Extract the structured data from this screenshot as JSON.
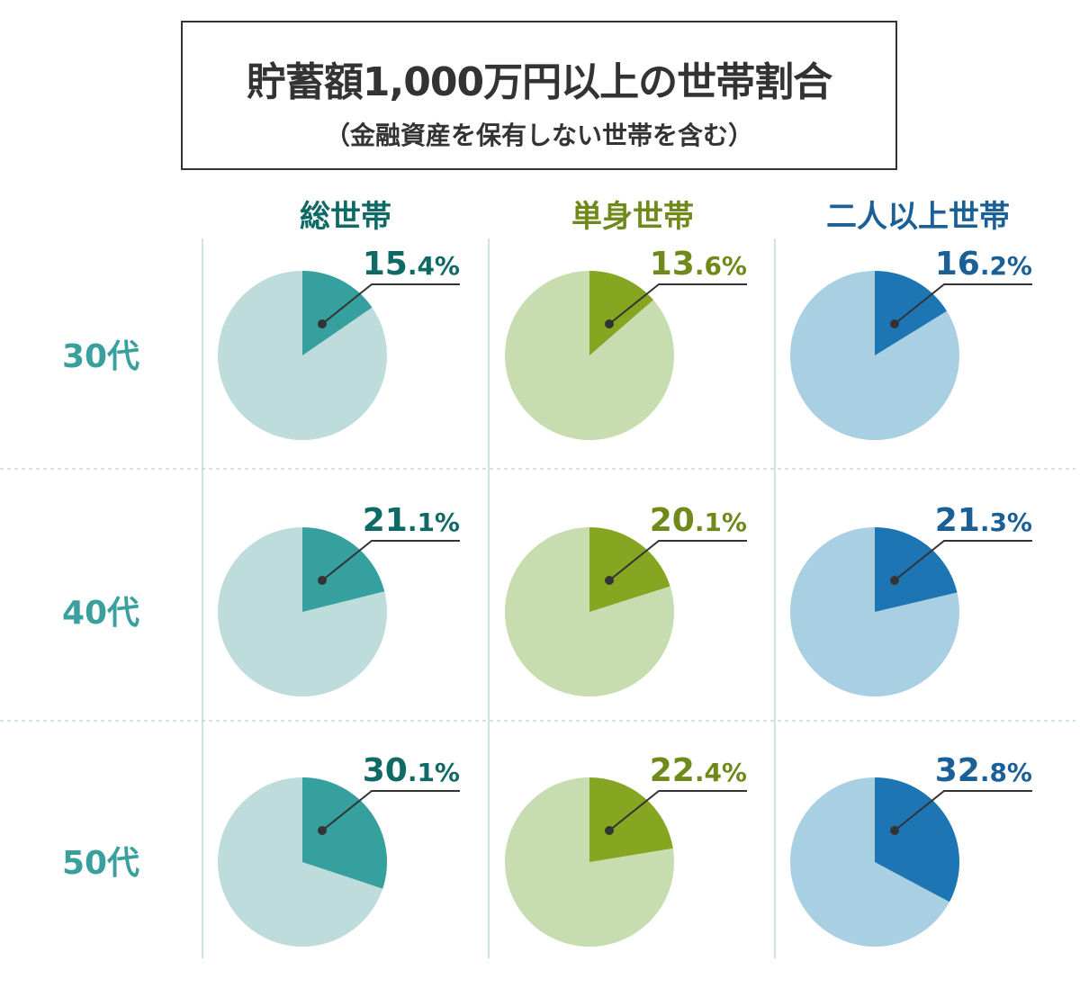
{
  "title": "貯蓄額1,000万円以上の世帯割合",
  "subtitle": "（金融資産を保有しない世帯を含む）",
  "chart_data": {
    "type": "pie",
    "title": "貯蓄額1,000万円以上の世帯割合",
    "subtitle": "（金融資産を保有しない世帯を含む）",
    "unit": "%",
    "columns": [
      {
        "label": "総世帯",
        "color": "#35a09e",
        "rest_color": "#bfdcdd",
        "text_color": "#0f6a66"
      },
      {
        "label": "単身世帯",
        "color": "#86a521",
        "rest_color": "#c7ddb0",
        "text_color": "#6f8a1a"
      },
      {
        "label": "二人以上世帯",
        "color": "#1e75b3",
        "rest_color": "#a9cfe3",
        "text_color": "#1a5f96"
      }
    ],
    "rows": [
      {
        "label": "30代",
        "values": [
          15.4,
          13.6,
          16.2
        ]
      },
      {
        "label": "40代",
        "values": [
          21.1,
          20.1,
          21.3
        ]
      },
      {
        "label": "50代",
        "values": [
          30.1,
          22.4,
          32.8
        ]
      }
    ],
    "row_label_color": "#3aa09e"
  }
}
